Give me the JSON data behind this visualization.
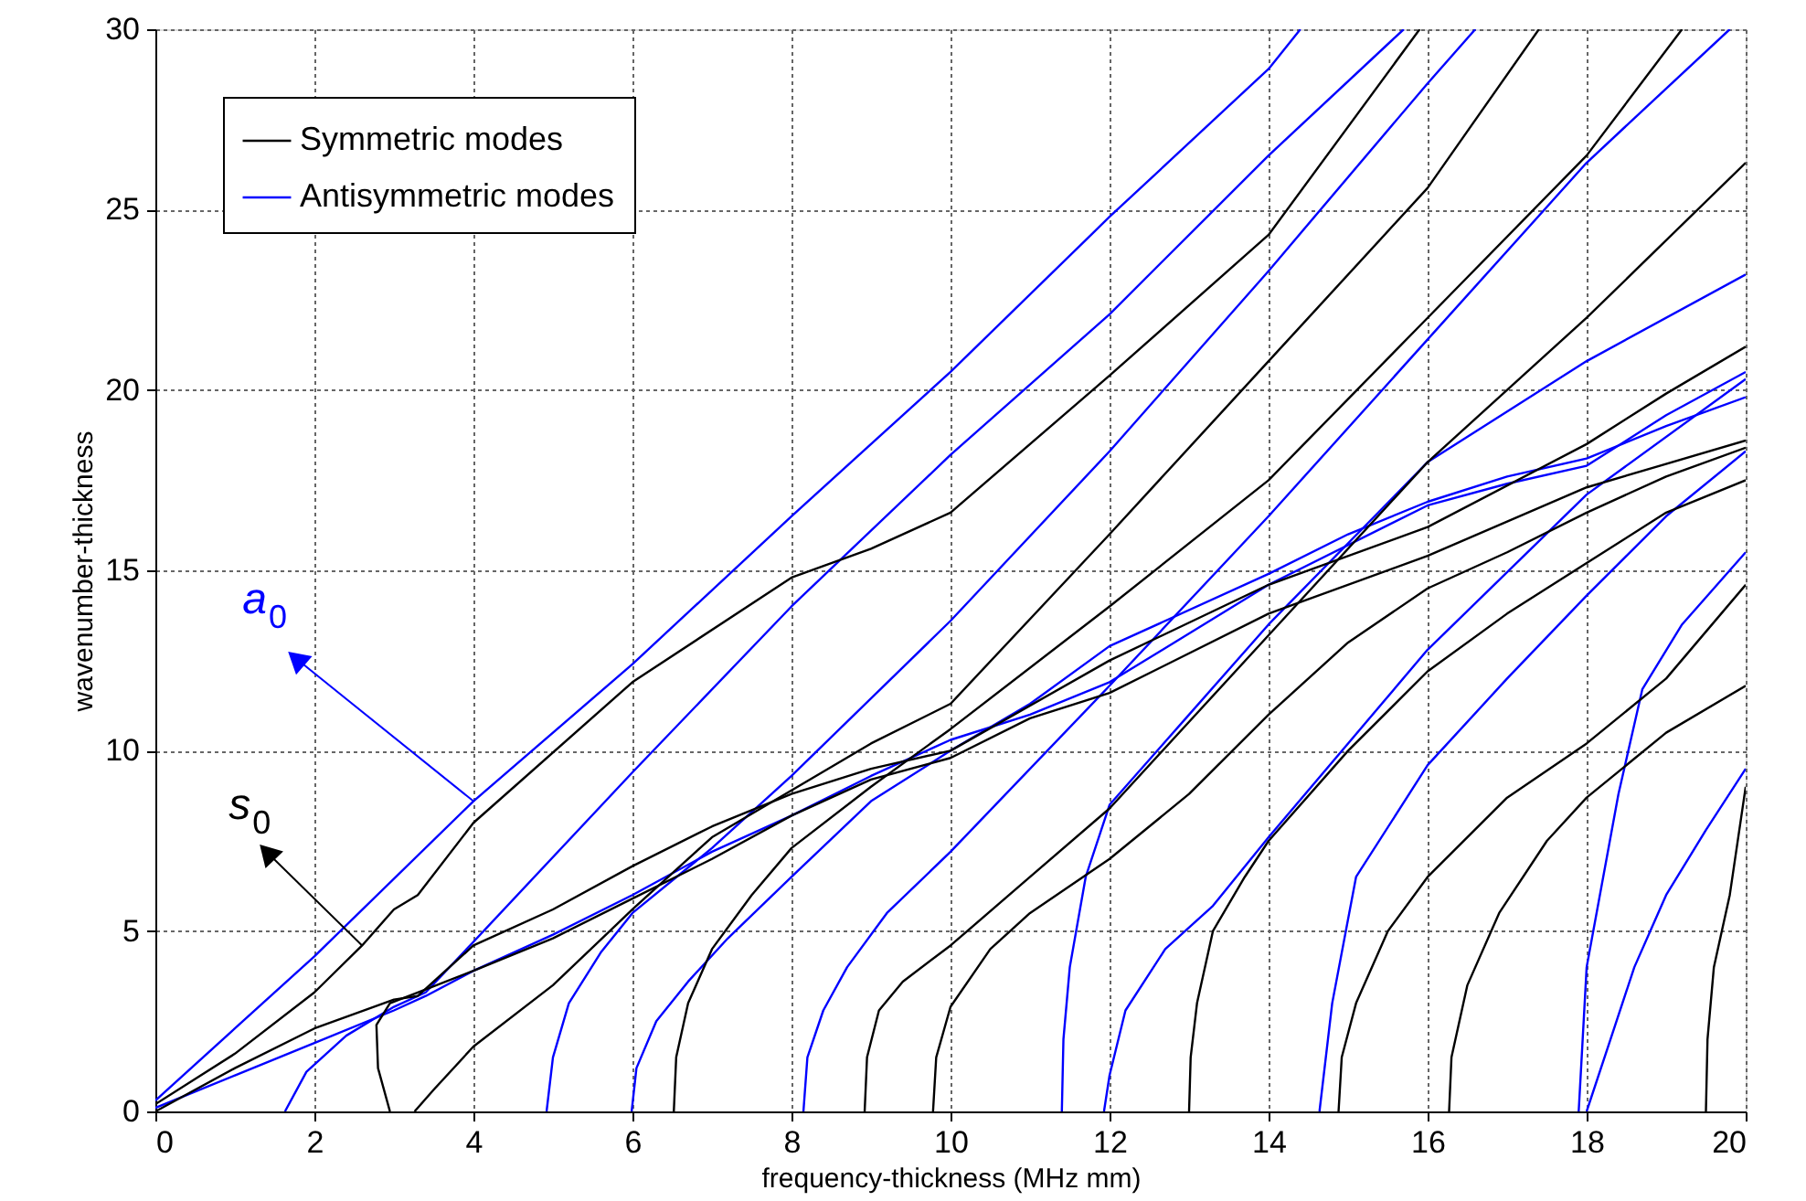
{
  "chart_data": {
    "type": "line",
    "xlabel": "frequency-thickness  (MHz mm)",
    "ylabel": "wavenumber-thickness",
    "xlim": [
      0,
      20
    ],
    "ylim": [
      0,
      30
    ],
    "xticks": [
      0,
      2,
      4,
      6,
      8,
      10,
      12,
      14,
      16,
      18,
      20
    ],
    "yticks": [
      0,
      5,
      10,
      15,
      20,
      25,
      30
    ],
    "grid": true,
    "legend": "top left",
    "annotations": [
      {
        "text": "a$_{0}$",
        "x": 4,
        "y": 8.6
      },
      {
        "text": "s$_{0}$",
        "x": 2.6,
        "y": 4.6
      }
    ],
    "series": [
      {
        "name": "Symmetric modes",
        "color": "#000000",
        "x": [
          0,
          1,
          2,
          2.6,
          3,
          3.3,
          4,
          6,
          8,
          9,
          10,
          12,
          14,
          15.9
        ],
        "values": [
          0.2,
          1.6,
          3.3,
          4.6,
          5.6,
          6.0,
          8.0,
          11.9,
          14.8,
          15.6,
          16.6,
          20.4,
          24.3,
          30
        ]
      },
      {
        "name": "Antisymmetric modes",
        "color": "#0000ff",
        "x": [
          0,
          1,
          2,
          4,
          6,
          8,
          10,
          12,
          14,
          14.4
        ],
        "values": [
          0.3,
          2.3,
          4.3,
          8.6,
          12.4,
          16.5,
          20.5,
          24.8,
          28.9,
          30
        ]
      },
      {
        "color": "#0000ff",
        "x": [
          0,
          1,
          2,
          3,
          3.4,
          4,
          5,
          6,
          7,
          8,
          9,
          10,
          11,
          12,
          14,
          16,
          17,
          18,
          19,
          20
        ],
        "values": [
          0.1,
          1.0,
          1.9,
          2.8,
          3.2,
          3.9,
          4.9,
          6.0,
          7.2,
          8.2,
          9.3,
          10.3,
          11.0,
          11.9,
          14.6,
          16.8,
          17.4,
          17.9,
          19.3,
          20.5
        ]
      },
      {
        "color": "#0000ff",
        "x": [
          1.63,
          1.9,
          2.4,
          3,
          3.4,
          4,
          6,
          8,
          10,
          12,
          14,
          15.7
        ],
        "values": [
          0,
          1.1,
          2.1,
          2.9,
          3.3,
          4.7,
          9.4,
          14.0,
          18.2,
          22.1,
          26.5,
          30
        ]
      },
      {
        "color": "#0000ff",
        "x": [
          4.92,
          5.0,
          5.2,
          5.6,
          6,
          7,
          8,
          10,
          12,
          14,
          16,
          16.6
        ],
        "values": [
          0,
          1.5,
          3.0,
          4.4,
          5.5,
          7.3,
          9.3,
          13.6,
          18.3,
          23.3,
          28.5,
          30
        ]
      },
      {
        "color": "#0000ff",
        "x": [
          5.99,
          6.05,
          6.3,
          6.7,
          7.2,
          8,
          9,
          10,
          11,
          12,
          14,
          15,
          16,
          17,
          18,
          19,
          20
        ],
        "values": [
          0,
          1.2,
          2.5,
          3.6,
          4.8,
          6.5,
          8.6,
          10.0,
          11.3,
          12.9,
          14.9,
          16.0,
          16.9,
          17.6,
          18.1,
          19.0,
          19.8
        ]
      },
      {
        "color": "#0000ff",
        "x": [
          8.15,
          8.2,
          8.4,
          8.7,
          9.2,
          10,
          12,
          14,
          16,
          18,
          19.8
        ],
        "values": [
          0,
          1.5,
          2.8,
          4.0,
          5.5,
          7.2,
          11.8,
          16.5,
          21.4,
          26.3,
          30
        ]
      },
      {
        "color": "#0000ff",
        "x": [
          11.4,
          11.42,
          11.5,
          11.7,
          12,
          13,
          14,
          16,
          18,
          20
        ],
        "values": [
          0,
          2.0,
          4.0,
          6.5,
          8.5,
          11.0,
          13.5,
          18.0,
          20.8,
          23.2
        ]
      },
      {
        "color": "#0000ff",
        "x": [
          11.93,
          12.0,
          12.2,
          12.7,
          13.3,
          14,
          16,
          18,
          20
        ],
        "values": [
          0,
          1.0,
          2.8,
          4.5,
          5.7,
          7.6,
          12.8,
          17.1,
          20.3
        ]
      },
      {
        "color": "#0000ff",
        "x": [
          14.64,
          14.8,
          15.1,
          16,
          17,
          18,
          19,
          20
        ],
        "values": [
          0,
          3.0,
          6.5,
          9.6,
          12.0,
          14.3,
          16.5,
          18.3
        ]
      },
      {
        "color": "#0000ff",
        "x": [
          17.9,
          17.95,
          18,
          18.4,
          18.7,
          19.2,
          20
        ],
        "values": [
          0,
          2.0,
          4.0,
          8.8,
          11.7,
          13.5,
          15.5
        ]
      },
      {
        "color": "#0000ff",
        "x": [
          18.0,
          18.3,
          18.6,
          19,
          19.5,
          20
        ],
        "values": [
          0,
          2.0,
          4.0,
          6.0,
          7.8,
          9.5
        ]
      },
      {
        "color": "#000000",
        "x": [
          0,
          1,
          2,
          3,
          3.3,
          4,
          5,
          6,
          7,
          8,
          9,
          10,
          12,
          14,
          16,
          18,
          19,
          20
        ],
        "values": [
          0,
          1.2,
          2.3,
          3.1,
          3.2,
          4.6,
          5.6,
          6.8,
          7.9,
          8.8,
          9.5,
          10.0,
          12.5,
          14.6,
          16.2,
          18.5,
          19.9,
          21.2
        ]
      },
      {
        "color": "#000000",
        "x": [
          2.95,
          2.8,
          2.78,
          2.95,
          3.3,
          4,
          5,
          6,
          7,
          8,
          9,
          10,
          11,
          12,
          14,
          16,
          18,
          20
        ],
        "values": [
          0,
          1.2,
          2.4,
          3.0,
          3.3,
          3.9,
          4.8,
          5.9,
          7.0,
          8.2,
          9.2,
          9.8,
          10.9,
          11.6,
          13.8,
          15.4,
          17.3,
          18.6
        ]
      },
      {
        "color": "#000000",
        "x": [
          3.26,
          3.5,
          4,
          5,
          6,
          7,
          8,
          9,
          10,
          12,
          14,
          16,
          17.4
        ],
        "values": [
          0,
          0.6,
          1.8,
          3.5,
          5.6,
          7.6,
          8.9,
          10.2,
          11.3,
          16.0,
          20.8,
          25.6,
          30
        ]
      },
      {
        "color": "#000000",
        "x": [
          6.52,
          6.55,
          6.7,
          7,
          7.5,
          8,
          9,
          10,
          12,
          14,
          16,
          18,
          19.2
        ],
        "values": [
          0,
          1.5,
          3.0,
          4.5,
          6.0,
          7.3,
          9.0,
          10.6,
          14.0,
          17.5,
          22.0,
          26.5,
          30
        ]
      },
      {
        "color": "#000000",
        "x": [
          8.92,
          8.95,
          9.1,
          9.4,
          10,
          11,
          12,
          13,
          14,
          16,
          18,
          20
        ],
        "values": [
          0,
          1.5,
          2.8,
          3.6,
          4.6,
          6.5,
          8.4,
          10.8,
          13.2,
          18.0,
          22.0,
          26.3
        ]
      },
      {
        "color": "#000000",
        "x": [
          9.78,
          9.82,
          10,
          10.5,
          11,
          12,
          13,
          14,
          15,
          16,
          17,
          18,
          19,
          20
        ],
        "values": [
          0,
          1.5,
          2.9,
          4.5,
          5.5,
          7.0,
          8.8,
          11.0,
          13.0,
          14.5,
          15.5,
          16.6,
          17.6,
          18.4
        ]
      },
      {
        "color": "#000000",
        "x": [
          13.0,
          13.02,
          13.1,
          13.3,
          13.7,
          14,
          15,
          16,
          17,
          18,
          19,
          20
        ],
        "values": [
          0,
          1.5,
          3.0,
          5.0,
          6.5,
          7.5,
          10.0,
          12.2,
          13.8,
          15.2,
          16.6,
          17.5
        ]
      },
      {
        "color": "#000000",
        "x": [
          14.88,
          14.92,
          15.1,
          15.5,
          16,
          17,
          18,
          19,
          20
        ],
        "values": [
          0,
          1.5,
          3.0,
          5.0,
          6.5,
          8.7,
          10.2,
          12.0,
          14.6
        ]
      },
      {
        "color": "#000000",
        "x": [
          16.27,
          16.3,
          16.5,
          16.9,
          17.5,
          18,
          19,
          20
        ],
        "values": [
          0,
          1.5,
          3.5,
          5.5,
          7.5,
          8.7,
          10.5,
          11.8
        ]
      },
      {
        "color": "#000000",
        "x": [
          19.5,
          19.52,
          19.6,
          19.8,
          20
        ],
        "values": [
          0,
          2.0,
          4.0,
          6.0,
          9.0
        ]
      }
    ]
  }
}
